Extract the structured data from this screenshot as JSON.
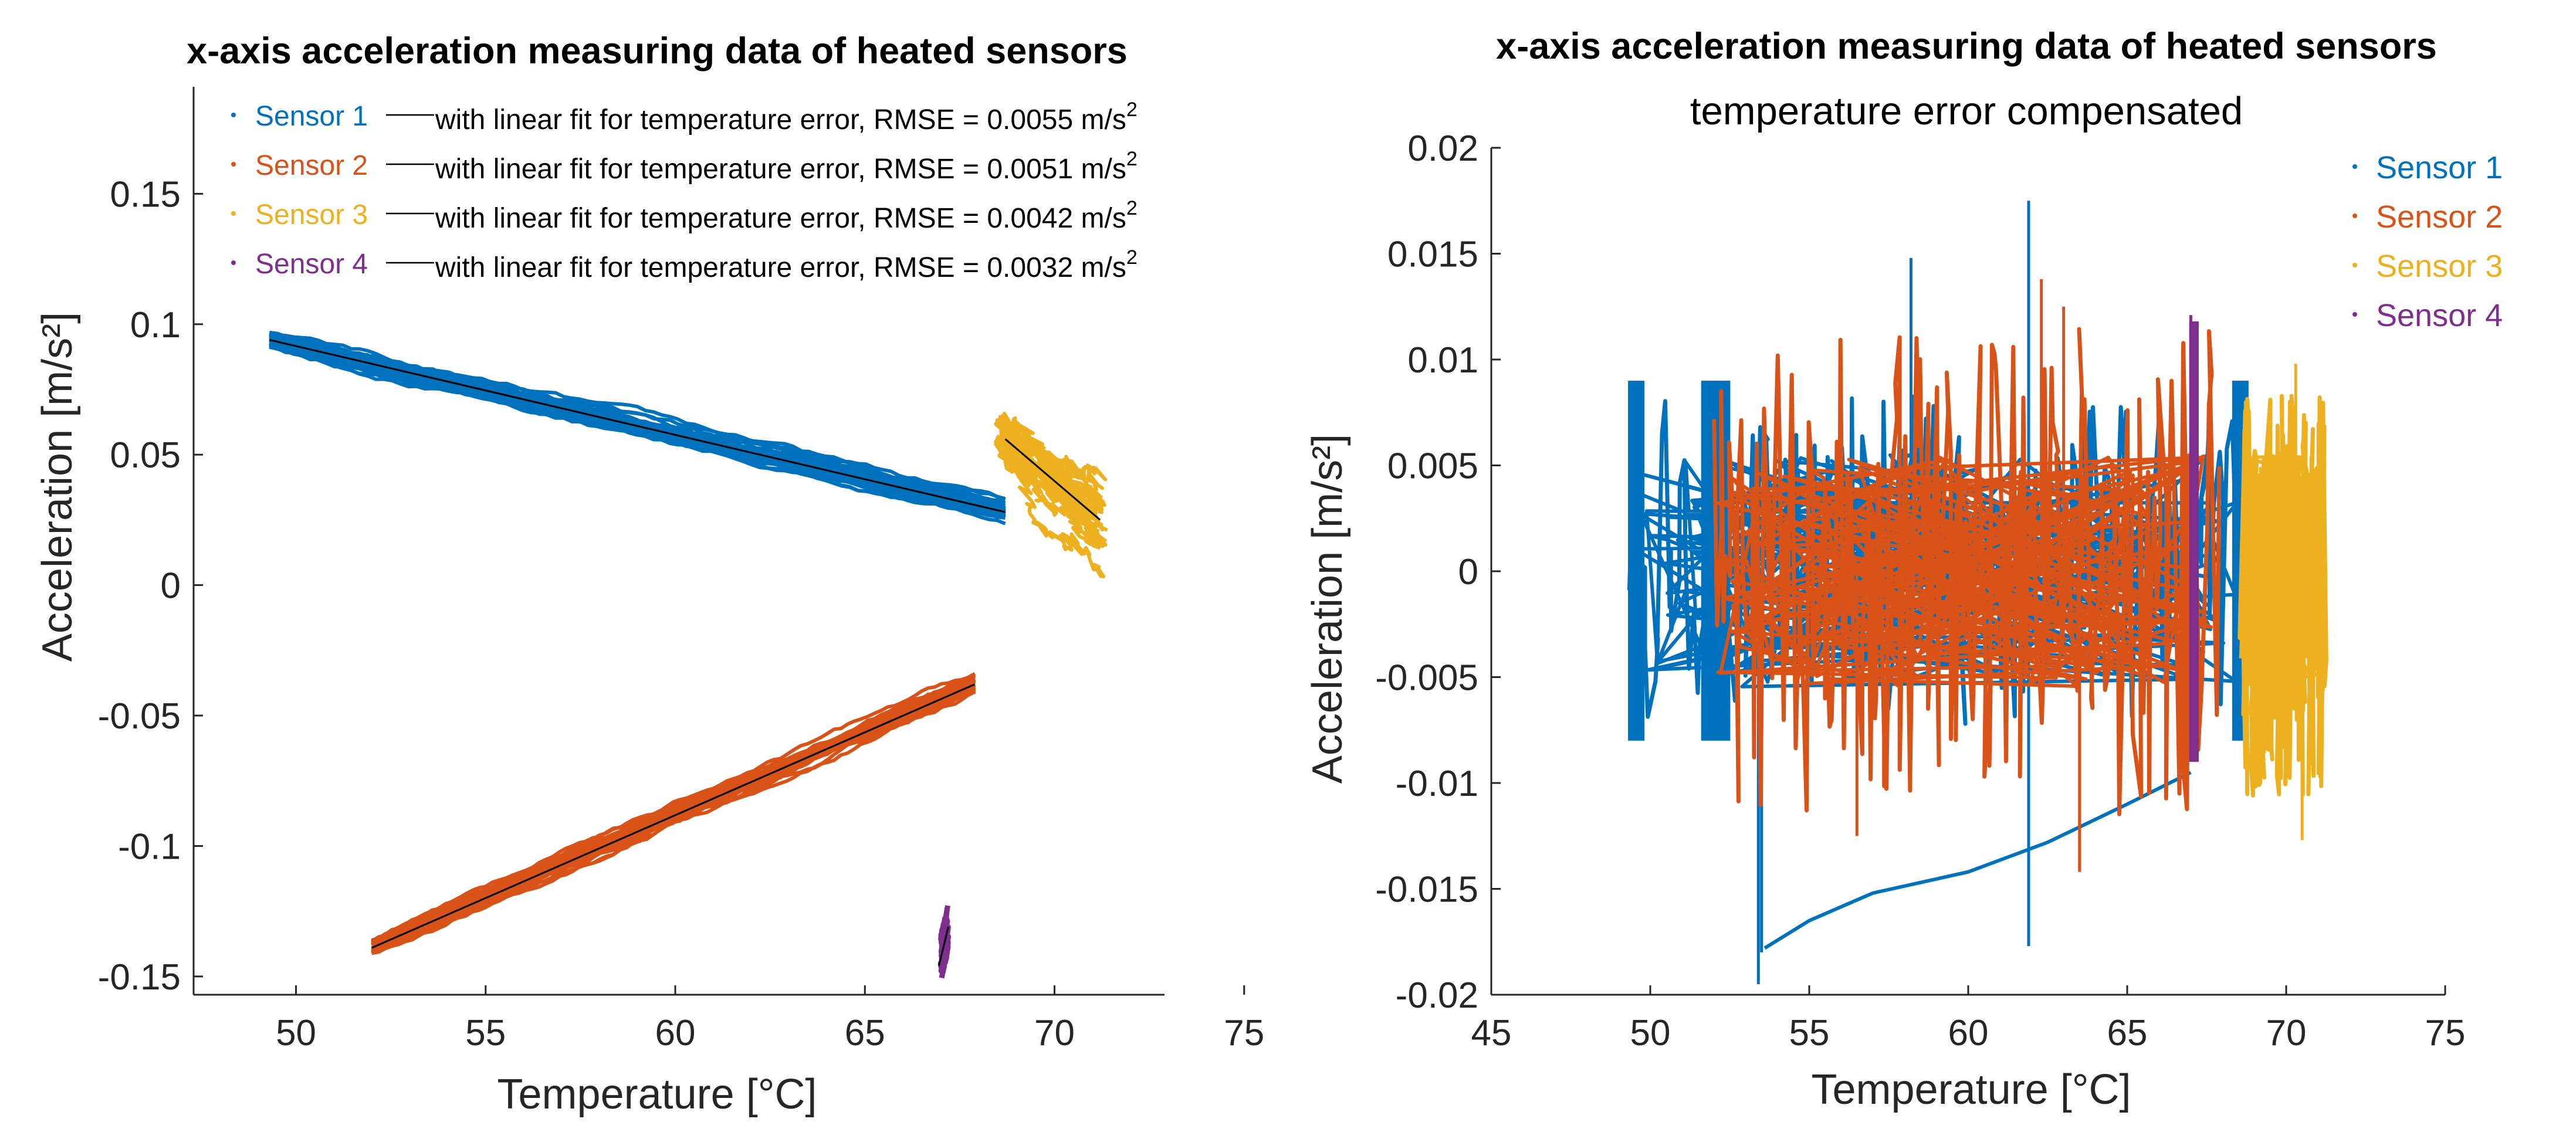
{
  "chart_data": [
    {
      "type": "scatter",
      "title": "x-axis acceleration measuring data of heated sensors",
      "subtitle": "",
      "xlabel": "Temperature [°C]",
      "ylabel": "Acceleration [m/s²]",
      "xlim": [
        47.3,
        72.9
      ],
      "ylim": [
        -0.157,
        0.191
      ],
      "x_ticks": [
        50,
        55,
        60,
        65,
        70,
        75
      ],
      "x_tick_labels": [
        "50",
        "55",
        "60",
        "65",
        "70",
        "75"
      ],
      "y_ticks": [
        -0.15,
        -0.1,
        -0.05,
        0,
        0.05,
        0.1,
        0.15
      ],
      "y_tick_labels": [
        "-0.15",
        "-0.1",
        "-0.05",
        "0",
        "0.05",
        "0.1",
        "0.15"
      ],
      "grid": false,
      "legend_position": "top-left",
      "fit_label": "with linear fit for temperature error, RMSE = ",
      "rmse_unit": "m/s",
      "rmse_unit_sup": "2",
      "series": [
        {
          "name": "Sensor 1",
          "color": "#0072BD",
          "rmse": "0.0055",
          "x_range": [
            49.3,
            68.7
          ],
          "fit": [
            [
              49.3,
              0.094
            ],
            [
              68.7,
              0.028
            ]
          ],
          "band": 0.012,
          "sample": [
            [
              50,
              0.092
            ],
            [
              53,
              0.083
            ],
            [
              56,
              0.072
            ],
            [
              59,
              0.062
            ],
            [
              62,
              0.052
            ],
            [
              65,
              0.041
            ],
            [
              68,
              0.031
            ]
          ]
        },
        {
          "name": "Sensor 2",
          "color": "#D95319",
          "rmse": "0.0051",
          "x_range": [
            52.0,
            67.9
          ],
          "fit": [
            [
              52.0,
              -0.139
            ],
            [
              67.9,
              -0.038
            ]
          ],
          "band": 0.012,
          "sample": [
            [
              52.5,
              -0.137
            ],
            [
              55,
              -0.121
            ],
            [
              58,
              -0.102
            ],
            [
              61,
              -0.083
            ],
            [
              64,
              -0.064
            ],
            [
              67.5,
              -0.041
            ]
          ]
        },
        {
          "name": "Sensor 3",
          "color": "#EDB120",
          "rmse": "0.0042",
          "x_range": [
            68.6,
            71.2
          ],
          "fit": [
            [
              68.7,
              0.056
            ],
            [
              71.2,
              0.025
            ]
          ],
          "band": 0.02,
          "sample": [
            [
              68.8,
              0.048
            ],
            [
              69.3,
              0.045
            ],
            [
              69.8,
              0.04
            ],
            [
              70.3,
              0.035
            ],
            [
              70.7,
              0.03
            ],
            [
              71.0,
              0.026
            ]
          ]
        },
        {
          "name": "Sensor 4",
          "color": "#7E2F8E",
          "rmse": "0.0032",
          "x_range": [
            66.9,
            67.3
          ],
          "fit": [
            [
              66.95,
              -0.146
            ],
            [
              67.2,
              -0.131
            ]
          ],
          "band": 0.018,
          "sample": [
            [
              67.0,
              -0.145
            ],
            [
              67.05,
              -0.14
            ],
            [
              67.1,
              -0.135
            ],
            [
              67.15,
              -0.13
            ]
          ]
        }
      ]
    },
    {
      "type": "scatter",
      "title": "x-axis acceleration measuring data of heated sensors",
      "subtitle": "temperature error compensated",
      "xlabel": "Temperature [°C]",
      "ylabel": "Acceleration [m/s²]",
      "xlim": [
        45,
        75
      ],
      "ylim": [
        -0.02,
        0.02
      ],
      "x_ticks": [
        45,
        50,
        55,
        60,
        65,
        70,
        75
      ],
      "x_tick_labels": [
        "45",
        "50",
        "55",
        "60",
        "65",
        "70",
        "75"
      ],
      "y_ticks": [
        -0.02,
        -0.015,
        -0.01,
        -0.005,
        0,
        0.005,
        0.01,
        0.015,
        0.02
      ],
      "y_tick_labels": [
        "-0.02",
        "-0.015",
        "-0.01",
        "-0.005",
        "0",
        "0.005",
        "0.01",
        "0.015",
        "0.02"
      ],
      "grid": false,
      "legend_position": "top-right",
      "series": [
        {
          "name": "Sensor 1",
          "color": "#0072BD",
          "x_range": [
            49.3,
            68.5
          ],
          "band_range": [
            -0.01,
            0.011
          ],
          "spikes": [
            [
              58.2,
              0.0148
            ],
            [
              61.9,
              0.0175
            ],
            [
              53.5,
              -0.018
            ],
            [
              61.9,
              -0.0177
            ],
            [
              53.4,
              -0.0195
            ]
          ],
          "tail": [
            [
              53.6,
              -0.0178
            ],
            [
              55,
              -0.0165
            ],
            [
              57,
              -0.0152
            ],
            [
              60,
              -0.0142
            ],
            [
              62.5,
              -0.0128
            ],
            [
              65,
              -0.011
            ],
            [
              67,
              -0.0095
            ]
          ]
        },
        {
          "name": "Sensor 2",
          "color": "#D95319",
          "x_range": [
            52.0,
            67.9
          ],
          "band_range": [
            -0.0135,
            0.0135
          ],
          "spikes": [
            [
              62.3,
              0.0138
            ],
            [
              63.0,
              0.0125
            ],
            [
              56.5,
              -0.0125
            ],
            [
              63.5,
              -0.0142
            ]
          ]
        },
        {
          "name": "Sensor 3",
          "color": "#EDB120",
          "x_range": [
            68.6,
            71.2
          ],
          "band_range": [
            -0.0125,
            0.0098
          ],
          "spikes": [
            [
              70.5,
              -0.0127
            ],
            [
              70.3,
              0.0098
            ]
          ]
        },
        {
          "name": "Sensor 4",
          "color": "#7E2F8E",
          "x_range": [
            66.9,
            67.3
          ],
          "band_range": [
            -0.009,
            0.0118
          ],
          "spikes": [
            [
              67.0,
              0.0121
            ]
          ]
        }
      ]
    }
  ]
}
